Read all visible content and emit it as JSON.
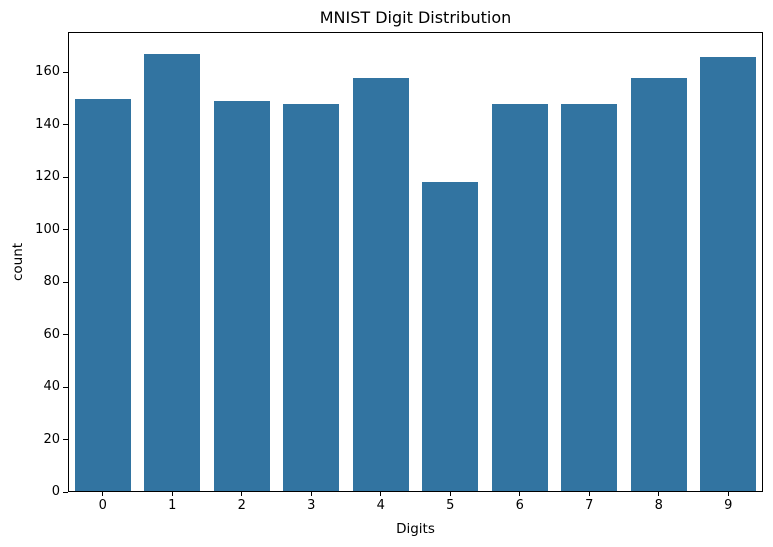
{
  "chart_data": {
    "type": "bar",
    "title": "MNIST Digit Distribution",
    "xlabel": "Digits",
    "ylabel": "count",
    "categories": [
      "0",
      "1",
      "2",
      "3",
      "4",
      "5",
      "6",
      "7",
      "8",
      "9"
    ],
    "values": [
      150,
      167,
      149,
      148,
      158,
      118,
      148,
      148,
      158,
      166
    ],
    "yticks": [
      0,
      20,
      40,
      60,
      80,
      100,
      120,
      140,
      160
    ],
    "ylim": [
      0,
      175.35
    ],
    "bar_color": "#3274a1",
    "axis_color": "#000000",
    "background_color": "#ffffff",
    "grid": false,
    "legend": "none",
    "bar_width_fraction": 0.8
  }
}
